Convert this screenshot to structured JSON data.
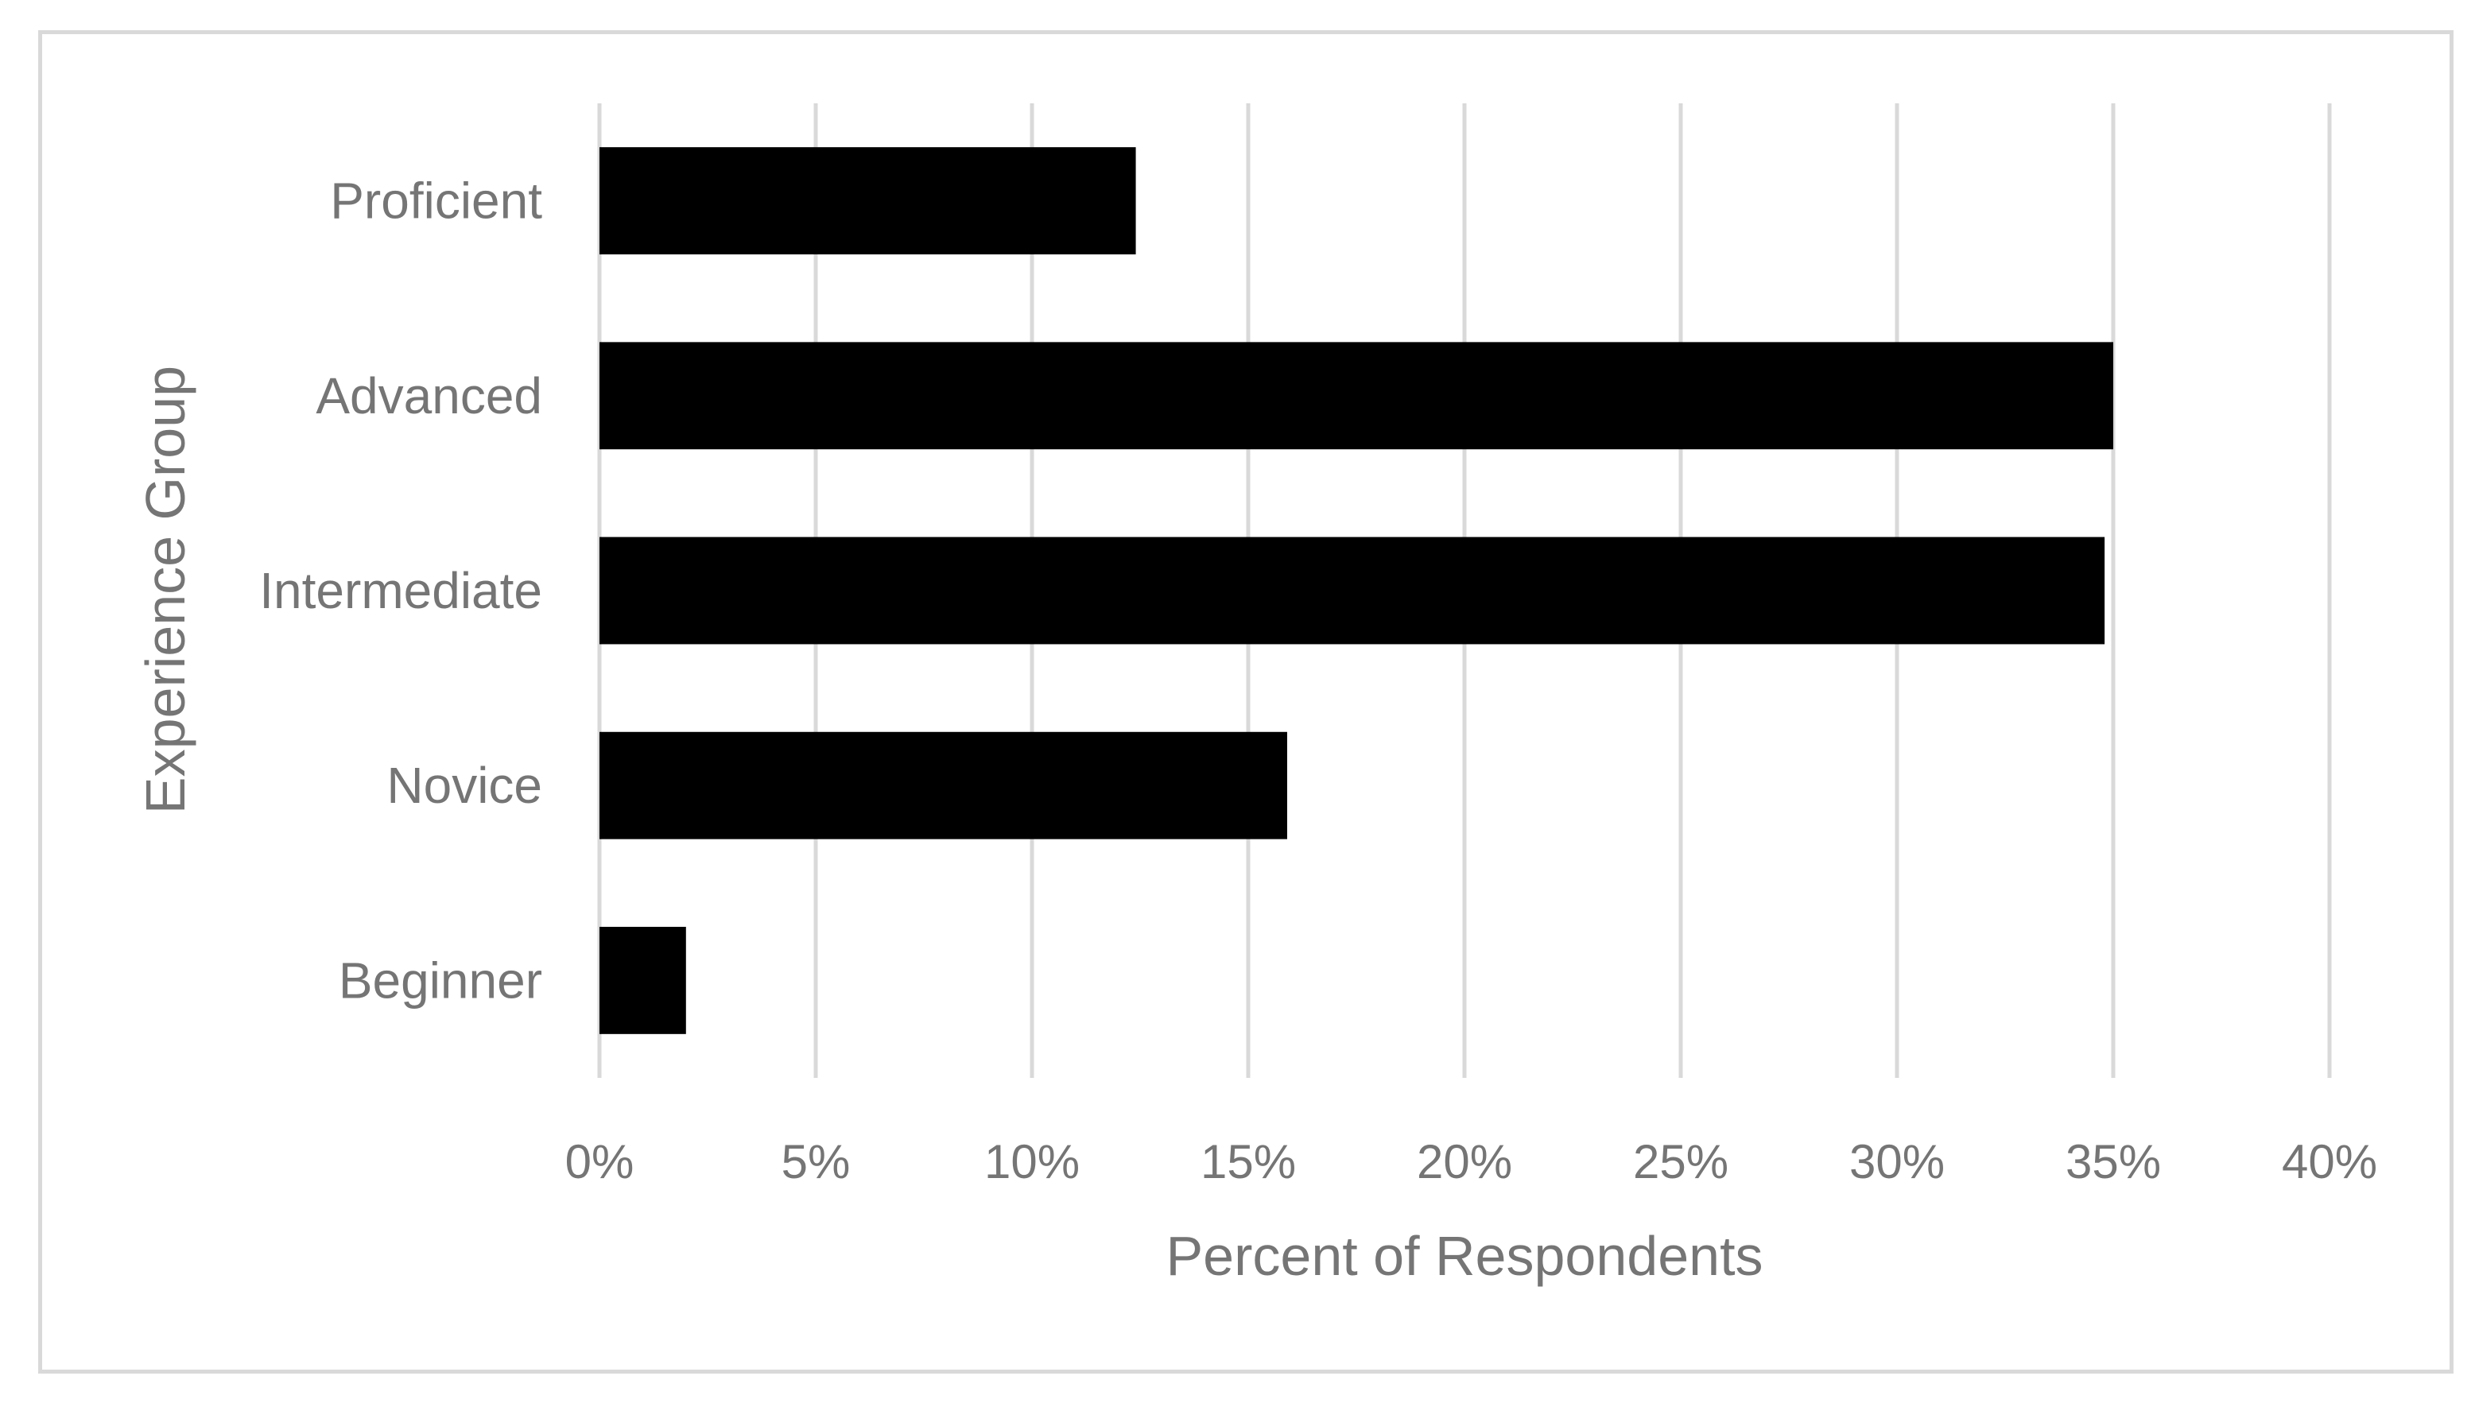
{
  "chart_data": {
    "type": "bar",
    "orientation": "horizontal",
    "categories": [
      "Proficient",
      "Advanced",
      "Intermediate",
      "Novice",
      "Beginner"
    ],
    "values": [
      12.4,
      35.0,
      34.8,
      15.9,
      2.0
    ],
    "xlabel": "Percent of Respondents",
    "ylabel": "Experience Group",
    "xlim": [
      0,
      40
    ],
    "xticks": [
      0,
      5,
      10,
      15,
      20,
      25,
      30,
      35,
      40
    ],
    "xtick_labels": [
      "0%",
      "5%",
      "10%",
      "15%",
      "20%",
      "25%",
      "30%",
      "35%",
      "40%"
    ],
    "grid": "vertical",
    "legend": "none",
    "colors": {
      "bar": "#000000",
      "grid": "#d9d9d9",
      "text": "#757575",
      "frame": "#d9d9d9"
    }
  }
}
